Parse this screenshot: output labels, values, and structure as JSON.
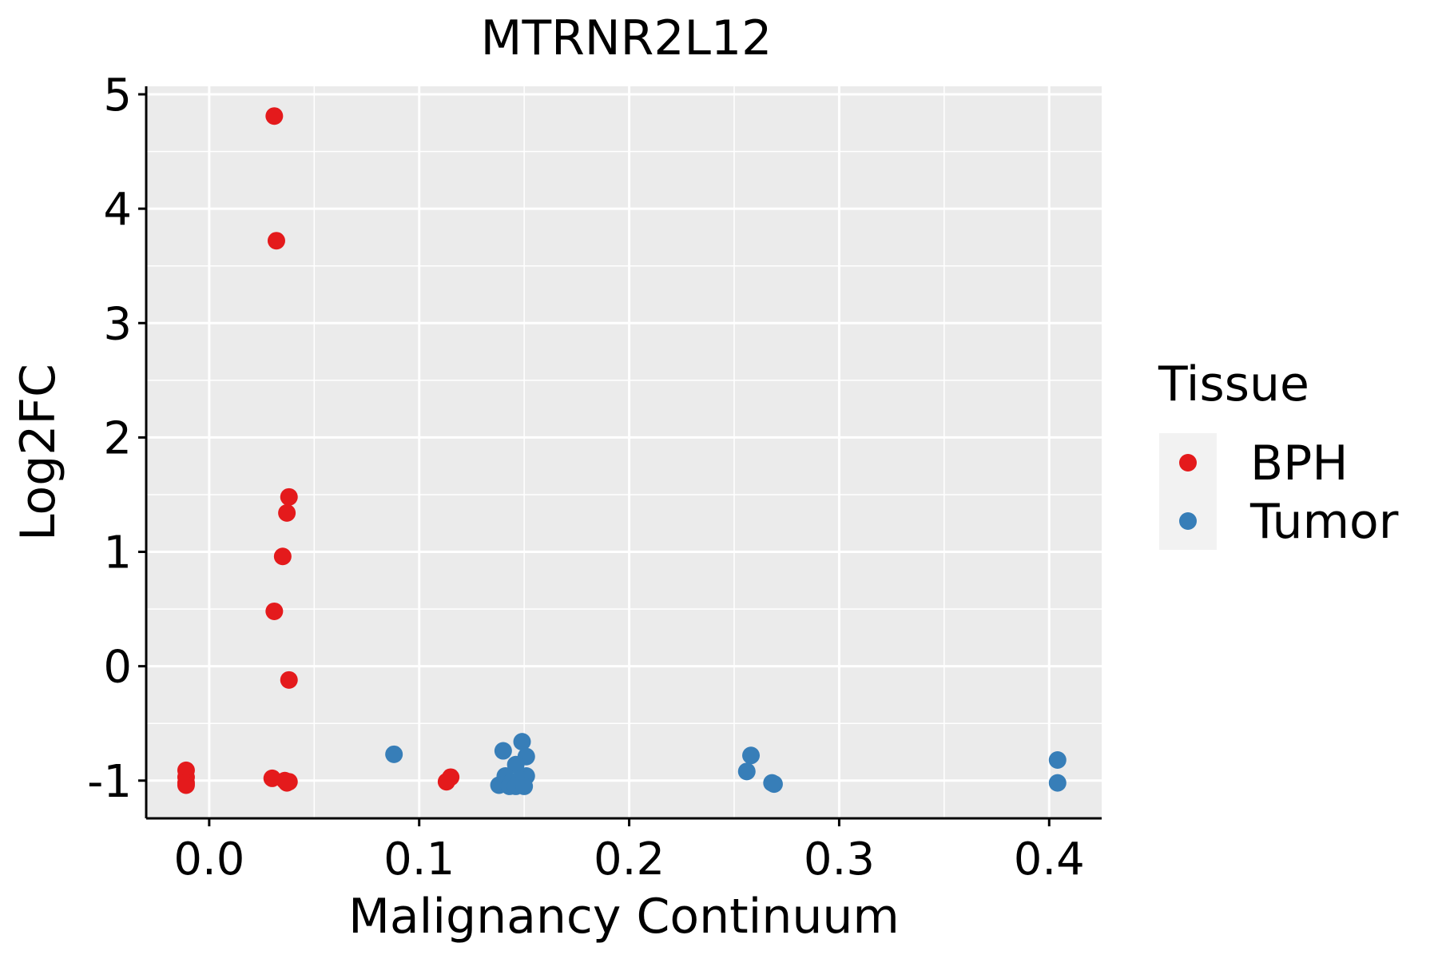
{
  "chart_data": {
    "type": "scatter",
    "title": "MTRNR2L12",
    "xlabel": "Malignancy Continuum",
    "ylabel": "Log2FC",
    "xlim": [
      -0.03,
      0.425
    ],
    "ylim": [
      -1.33,
      5.07
    ],
    "x_ticks": [
      0.0,
      0.1,
      0.2,
      0.3,
      0.4
    ],
    "x_tick_labels": [
      "0.0",
      "0.1",
      "0.2",
      "0.3",
      "0.4"
    ],
    "y_ticks": [
      -1,
      0,
      1,
      2,
      3,
      4,
      5
    ],
    "y_tick_labels": [
      "-1",
      "0",
      "1",
      "2",
      "3",
      "4",
      "5"
    ],
    "grid": true,
    "legend": {
      "title": "Tissue",
      "position": "right",
      "entries": [
        "BPH",
        "Tumor"
      ]
    },
    "series": [
      {
        "name": "BPH",
        "color": "#E41A1C",
        "points": [
          {
            "x": -0.011,
            "y": -0.91
          },
          {
            "x": -0.011,
            "y": -0.97
          },
          {
            "x": -0.011,
            "y": -1.02
          },
          {
            "x": -0.011,
            "y": -1.04
          },
          {
            "x": 0.031,
            "y": 4.81
          },
          {
            "x": 0.032,
            "y": 3.72
          },
          {
            "x": 0.038,
            "y": 1.48
          },
          {
            "x": 0.037,
            "y": 1.34
          },
          {
            "x": 0.035,
            "y": 0.96
          },
          {
            "x": 0.031,
            "y": 0.48
          },
          {
            "x": 0.038,
            "y": -0.12
          },
          {
            "x": 0.03,
            "y": -0.98
          },
          {
            "x": 0.036,
            "y": -1.0
          },
          {
            "x": 0.037,
            "y": -1.02
          },
          {
            "x": 0.038,
            "y": -1.01
          },
          {
            "x": 0.115,
            "y": -0.97
          },
          {
            "x": 0.113,
            "y": -1.01
          }
        ]
      },
      {
        "name": "Tumor",
        "color": "#377EB8",
        "points": [
          {
            "x": 0.088,
            "y": -0.77
          },
          {
            "x": 0.149,
            "y": -0.66
          },
          {
            "x": 0.14,
            "y": -0.74
          },
          {
            "x": 0.151,
            "y": -0.79
          },
          {
            "x": 0.146,
            "y": -0.86
          },
          {
            "x": 0.141,
            "y": -0.96
          },
          {
            "x": 0.151,
            "y": -0.96
          },
          {
            "x": 0.144,
            "y": -1.01
          },
          {
            "x": 0.148,
            "y": -0.99
          },
          {
            "x": 0.138,
            "y": -1.04
          },
          {
            "x": 0.143,
            "y": -1.05
          },
          {
            "x": 0.146,
            "y": -1.05
          },
          {
            "x": 0.15,
            "y": -1.05
          },
          {
            "x": 0.258,
            "y": -0.78
          },
          {
            "x": 0.256,
            "y": -0.92
          },
          {
            "x": 0.268,
            "y": -1.02
          },
          {
            "x": 0.269,
            "y": -1.03
          },
          {
            "x": 0.404,
            "y": -0.82
          },
          {
            "x": 0.404,
            "y": -1.02
          }
        ]
      }
    ]
  }
}
